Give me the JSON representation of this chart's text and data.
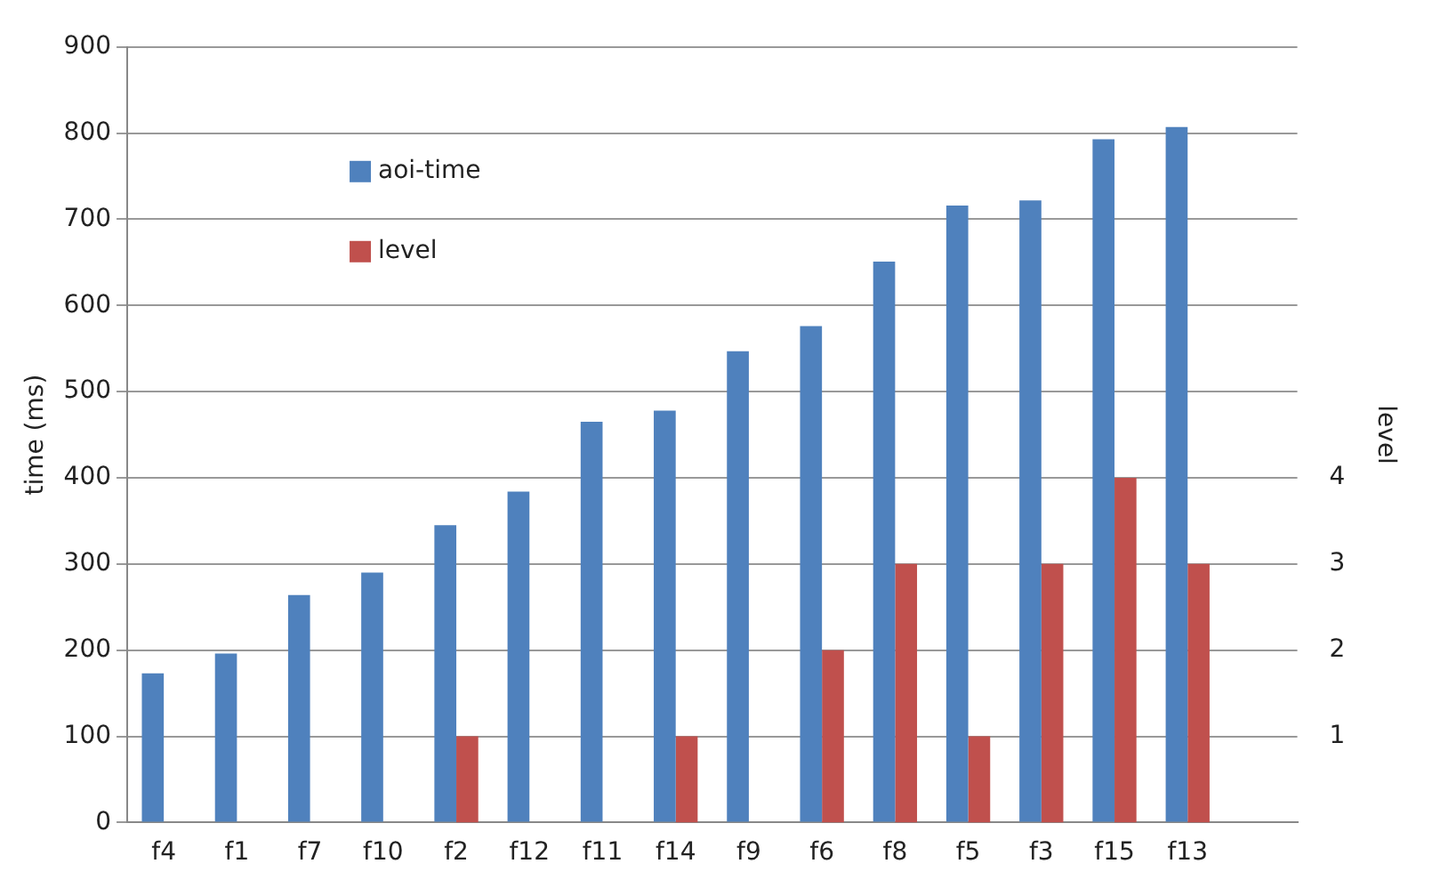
{
  "chart_data": {
    "type": "bar",
    "ylabel": "time (ms)",
    "y2label": "level",
    "categories": [
      "f4",
      "f1",
      "f7",
      "f10",
      "f2",
      "f12",
      "f11",
      "f14",
      "f9",
      "f6",
      "f8",
      "f5",
      "f3",
      "f15",
      "f13",
      null
    ],
    "series": [
      {
        "name": "aoi-time",
        "color": "#4f81bd",
        "values": [
          173,
          196,
          264,
          290,
          345,
          384,
          465,
          478,
          547,
          576,
          651,
          716,
          722,
          793,
          807,
          null
        ]
      },
      {
        "name": "level",
        "color": "#c0504d",
        "axis": "y2",
        "values": [
          null,
          null,
          null,
          null,
          1,
          null,
          null,
          1,
          null,
          2,
          3,
          1,
          3,
          4,
          3,
          null
        ]
      }
    ],
    "ylim": [
      0,
      900
    ],
    "yticks": [
      0,
      100,
      200,
      300,
      400,
      500,
      600,
      700,
      800,
      900
    ],
    "y2lim": [
      0,
      9
    ],
    "y2ticks": [
      1,
      2,
      3,
      4
    ],
    "grid": "y",
    "legend": "top left"
  }
}
